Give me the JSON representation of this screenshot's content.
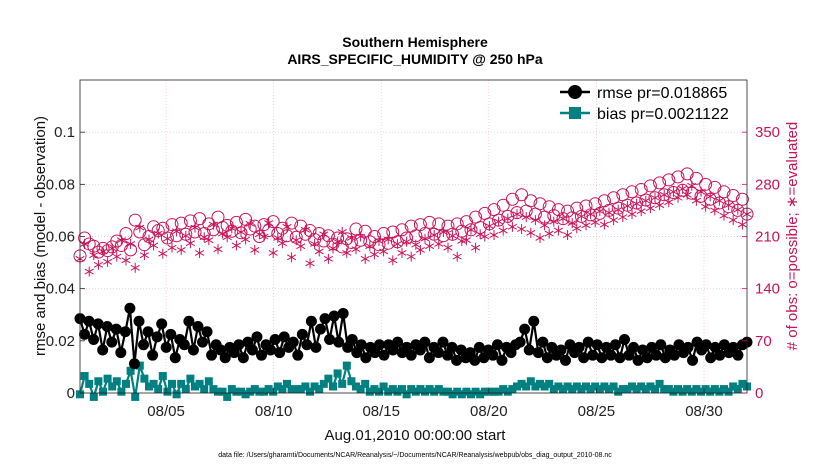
{
  "chart_data": {
    "type": "line",
    "title": "Southern Hemisphere",
    "subtitle": "AIRS_SPECIFIC_HUMIDITY @ 250 hPa",
    "xlabel": "Aug.01,2010 00:00:00 start",
    "ylabel": "rmse and bias (model - observation)",
    "ylabel_right": "# of obs: o=possible; ∗=evaluated",
    "footnote": "data file: /Users/gharamti/Documents/NCAR/Reanalysis/~/Documents/NCAR/Reanalysis/webpub/obs_diag_output_2010-08.nc",
    "x_range": [
      1,
      32
    ],
    "x_ticks": [
      5,
      10,
      15,
      20,
      25,
      30
    ],
    "x_tick_labels": [
      "08/05",
      "08/10",
      "08/15",
      "08/20",
      "08/25",
      "08/30"
    ],
    "ylim": [
      0,
      0.12
    ],
    "y_ticks": [
      0,
      0.02,
      0.04,
      0.06,
      0.08,
      0.1
    ],
    "y_tick_labels": [
      "0",
      "0.02",
      "0.04",
      "0.06",
      "0.08",
      "0.1"
    ],
    "ylim_right": [
      0,
      420
    ],
    "y_ticks_right": [
      0,
      70,
      140,
      210,
      280,
      350
    ],
    "y_tick_labels_right": [
      "0",
      "70",
      "140",
      "210",
      "280",
      "350"
    ],
    "grid": true,
    "legend_position": "top-right",
    "colors": {
      "rmse": "#000000",
      "bias": "#008080",
      "obs": "#c8145a",
      "grid": "#f2b8cf"
    },
    "series": [
      {
        "name": "rmse pr=0.018865",
        "axis": "left",
        "marker": "filled-circle",
        "values": [
          0.0285,
          0.0225,
          0.0275,
          0.0205,
          0.0265,
          0.0165,
          0.0255,
          0.0195,
          0.0245,
          0.0155,
          0.0235,
          0.0325,
          0.0112,
          0.0275,
          0.0185,
          0.0235,
          0.0145,
          0.0215,
          0.0265,
          0.0175,
          0.0225,
          0.0135,
          0.0205,
          0.0185,
          0.0275,
          0.0165,
          0.0255,
          0.0195,
          0.0235,
          0.0145,
          0.0185,
          0.0165,
          0.0135,
          0.0175,
          0.0155,
          0.0185,
          0.0135,
          0.0195,
          0.0165,
          0.0215,
          0.0145,
          0.0185,
          0.0165,
          0.0205,
          0.0155,
          0.0215,
          0.0175,
          0.0195,
          0.0145,
          0.0225,
          0.0185,
          0.0275,
          0.0175,
          0.0245,
          0.0285,
          0.0205,
          0.0295,
          0.0195,
          0.0305,
          0.0175,
          0.0205,
          0.0155,
          0.0185,
          0.0135,
          0.0175,
          0.0155,
          0.0185,
          0.0145,
          0.0185,
          0.0165,
          0.0195,
          0.0155,
          0.0175,
          0.0145,
          0.0185,
          0.0165,
          0.0195,
          0.0135,
          0.0175,
          0.0155,
          0.0195,
          0.0145,
          0.0175,
          0.0125,
          0.0165,
          0.0135,
          0.0155,
          0.0125,
          0.0175,
          0.0135,
          0.0165,
          0.0145,
          0.0185,
          0.0125,
          0.0175,
          0.0155,
          0.0185,
          0.0195,
          0.0245,
          0.0165,
          0.0275,
          0.0155,
          0.0195,
          0.0135,
          0.0175,
          0.0145,
          0.0165,
          0.0125,
          0.0185,
          0.0155,
          0.0175,
          0.0135,
          0.0195,
          0.0145,
          0.0185,
          0.0135,
          0.0175,
          0.0145,
          0.0185,
          0.0135,
          0.0205,
          0.0145,
          0.0175,
          0.0125,
          0.0165,
          0.0135,
          0.0175,
          0.0145,
          0.0185,
          0.0135,
          0.0165,
          0.0145,
          0.0185,
          0.0155,
          0.0175,
          0.0125,
          0.0195,
          0.0165,
          0.0185,
          0.0135,
          0.0175,
          0.0145,
          0.0185,
          0.0155,
          0.0175,
          0.0145,
          0.0185,
          0.0195
        ]
      },
      {
        "name": "bias pr=0.0021122",
        "axis": "left",
        "marker": "filled-square",
        "values": [
          -0.0005,
          0.0065,
          0.0035,
          -0.0015,
          0.0045,
          0.0005,
          0.0055,
          0.0025,
          0.0045,
          0.0005,
          0.0035,
          0.0085,
          -0.0015,
          0.0105,
          0.0055,
          0.0025,
          0.0035,
          0.0015,
          0.0065,
          0.0005,
          0.0035,
          -0.0005,
          0.0035,
          0.0015,
          0.0055,
          0.0025,
          0.0035,
          0.0015,
          0.0045,
          0.0015,
          0.0005,
          0.0005,
          -0.0015,
          0.0015,
          0.0005,
          0.0005,
          -0.0005,
          0.0005,
          0.0015,
          0.0005,
          0.0005,
          0.0015,
          0.0005,
          0.0025,
          0.0015,
          0.0035,
          0.0015,
          0.0015,
          0.0015,
          0.0025,
          0.0005,
          0.0025,
          0.0015,
          0.0035,
          0.0055,
          0.0025,
          0.0075,
          0.0035,
          0.0105,
          0.0045,
          0.0025,
          0.0015,
          0.0035,
          0.0005,
          0.0015,
          0.0005,
          0.0025,
          0.0005,
          0.0015,
          0.0005,
          0.0015,
          -0.0005,
          0.0015,
          0.0005,
          0.0015,
          0.0005,
          0.0015,
          0.0005,
          0.0015,
          0.0005,
          0.0005,
          -0.0005,
          0.0005,
          -0.0005,
          0.0005,
          -0.0005,
          0.0005,
          -0.0005,
          0.0005,
          0.0005,
          0.0005,
          0.0005,
          0.0015,
          0.0005,
          0.0015,
          0.0025,
          0.0035,
          0.0025,
          0.0045,
          0.0025,
          0.0035,
          0.0025,
          0.0035,
          0.0015,
          0.0025,
          0.0015,
          0.0025,
          0.0015,
          0.0025,
          0.0015,
          0.0025,
          0.0015,
          0.0025,
          0.0015,
          0.0025,
          0.0015,
          0.0025,
          0.0005,
          0.0015,
          0.0015,
          0.0025,
          0.0015,
          0.0025,
          0.0015,
          0.0025,
          0.0015,
          0.0035,
          0.0015,
          0.0015,
          0.0005,
          0.0015,
          0.0005,
          0.0015,
          0.0005,
          0.0015,
          0.0005,
          0.0015,
          0.0005,
          0.0015,
          0.0005,
          0.0015,
          0.0005,
          0.0025,
          0.0015,
          0.0035,
          0.0025
        ]
      },
      {
        "name": "possible obs",
        "axis": "right",
        "marker": "open-circle",
        "values": [
          184,
          208,
          200,
          197,
          189,
          194,
          191,
          196,
          204,
          198,
          214,
          192,
          232,
          216,
          199,
          210,
          223,
          218,
          221,
          208,
          226,
          211,
          228,
          213,
          231,
          216,
          234,
          214,
          227,
          219,
          236,
          222,
          225,
          217,
          229,
          215,
          233,
          220,
          224,
          210,
          226,
          218,
          230,
          214,
          221,
          211,
          228,
          209,
          224,
          213,
          218,
          206,
          214,
          204,
          211,
          200,
          208,
          196,
          207,
          202,
          220,
          205,
          217,
          203,
          210,
          199,
          214,
          201,
          216,
          203,
          219,
          208,
          224,
          211,
          226,
          214,
          229,
          213,
          227,
          211,
          224,
          213,
          227,
          217,
          230,
          219,
          236,
          222,
          241,
          227,
          246,
          232,
          252,
          237,
          260,
          242,
          266,
          244,
          258,
          240,
          254,
          236,
          250,
          238,
          246,
          234,
          244,
          235,
          248,
          237,
          251,
          239,
          254,
          241,
          258,
          245,
          262,
          248,
          266,
          252,
          270,
          255,
          273,
          259,
          278,
          262,
          282,
          266,
          286,
          269,
          290,
          272,
          294,
          268,
          288,
          264,
          280,
          260,
          276,
          255,
          270,
          250,
          265,
          245,
          260,
          240
        ]
      },
      {
        "name": "evaluated obs",
        "axis": "right",
        "marker": "asterisk",
        "values": [
          180,
          200,
          163,
          185,
          172,
          190,
          176,
          194,
          183,
          205,
          178,
          200,
          168,
          222,
          185,
          206,
          198,
          214,
          187,
          207,
          195,
          217,
          192,
          211,
          201,
          222,
          188,
          209,
          205,
          226,
          193,
          214,
          209,
          221,
          198,
          216,
          206,
          227,
          192,
          213,
          210,
          228,
          188,
          208,
          201,
          223,
          182,
          205,
          197,
          219,
          174,
          200,
          190,
          213,
          180,
          194,
          203,
          216,
          188,
          208,
          193,
          210,
          180,
          197,
          186,
          204,
          190,
          206,
          178,
          200,
          188,
          203,
          183,
          199,
          192,
          207,
          197,
          212,
          200,
          216,
          195,
          211,
          183,
          204,
          205,
          219,
          195,
          213,
          210,
          224,
          212,
          230,
          218,
          234,
          223,
          240,
          220,
          236,
          215,
          232,
          208,
          225,
          214,
          230,
          218,
          234,
          212,
          228,
          221,
          237,
          225,
          240,
          229,
          244,
          226,
          242,
          232,
          246,
          236,
          251,
          240,
          254,
          244,
          258,
          248,
          262,
          252,
          266,
          256,
          270,
          262,
          274,
          266,
          278,
          258,
          270,
          250,
          264,
          245,
          258,
          238,
          252,
          232,
          246,
          226,
          240
        ]
      }
    ]
  }
}
